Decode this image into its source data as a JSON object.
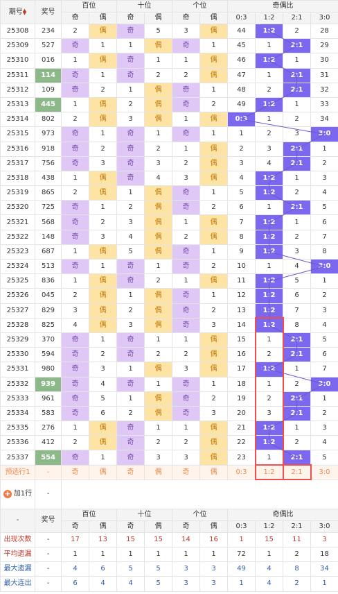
{
  "header": {
    "issue_label": "期号",
    "num_label": "奖号",
    "groups": [
      "百位",
      "十位",
      "个位",
      "奇偶比"
    ],
    "sub": [
      "奇",
      "偶",
      "奇",
      "偶",
      "奇",
      "偶",
      "0:3",
      "1:2",
      "2:1",
      "3:0"
    ]
  },
  "rows": [
    {
      "issue": "25308",
      "num": "234",
      "hl": false,
      "b": [
        [
          "2",
          0
        ],
        [
          "偶",
          1
        ]
      ],
      "s": [
        [
          "奇",
          1
        ],
        [
          "5",
          0
        ]
      ],
      "g": [
        [
          "3",
          0
        ],
        [
          "偶",
          1
        ]
      ],
      "r": [
        "44",
        "1:2",
        "2",
        "28"
      ],
      "ri": 1
    },
    {
      "issue": "25309",
      "num": "527",
      "hl": false,
      "b": [
        [
          "奇",
          1
        ],
        [
          "1",
          0
        ]
      ],
      "s": [
        [
          "1",
          0
        ],
        [
          "偶",
          1
        ]
      ],
      "g": [
        [
          "奇",
          1
        ],
        [
          "1",
          0
        ]
      ],
      "r": [
        "45",
        "1",
        "2:1",
        "29"
      ],
      "ri": 2
    },
    {
      "issue": "25310",
      "num": "016",
      "hl": false,
      "b": [
        [
          "1",
          0
        ],
        [
          "偶",
          1
        ]
      ],
      "s": [
        [
          "奇",
          1
        ],
        [
          "1",
          0
        ]
      ],
      "g": [
        [
          "1",
          0
        ],
        [
          "偶",
          1
        ]
      ],
      "r": [
        "46",
        "1:2",
        "1",
        "30"
      ],
      "ri": 1
    },
    {
      "issue": "25311",
      "num": "114",
      "hl": true,
      "b": [
        [
          "奇",
          1
        ],
        [
          "1",
          0
        ]
      ],
      "s": [
        [
          "奇",
          1
        ],
        [
          "2",
          0
        ]
      ],
      "g": [
        [
          "2",
          0
        ],
        [
          "偶",
          1
        ]
      ],
      "r": [
        "47",
        "1",
        "2:1",
        "31"
      ],
      "ri": 2
    },
    {
      "issue": "25312",
      "num": "109",
      "hl": false,
      "b": [
        [
          "奇",
          1
        ],
        [
          "2",
          0
        ]
      ],
      "s": [
        [
          "1",
          0
        ],
        [
          "偶",
          1
        ]
      ],
      "g": [
        [
          "奇",
          1
        ],
        [
          "1",
          0
        ]
      ],
      "r": [
        "48",
        "2",
        "2:1",
        "32"
      ],
      "ri": 2
    },
    {
      "issue": "25313",
      "num": "445",
      "hl": true,
      "b": [
        [
          "1",
          0
        ],
        [
          "偶",
          1
        ]
      ],
      "s": [
        [
          "2",
          0
        ],
        [
          "偶",
          1
        ]
      ],
      "g": [
        [
          "奇",
          1
        ],
        [
          "2",
          0
        ]
      ],
      "r": [
        "49",
        "1:2",
        "1",
        "33"
      ],
      "ri": 1
    },
    {
      "issue": "25314",
      "num": "802",
      "hl": false,
      "b": [
        [
          "2",
          0
        ],
        [
          "偶",
          1
        ]
      ],
      "s": [
        [
          "3",
          0
        ],
        [
          "偶",
          1
        ]
      ],
      "g": [
        [
          "1",
          0
        ],
        [
          "偶",
          1
        ]
      ],
      "r": [
        "0:3",
        "1",
        "2",
        "34"
      ],
      "ri": 0
    },
    {
      "issue": "25315",
      "num": "973",
      "hl": false,
      "b": [
        [
          "奇",
          1
        ],
        [
          "1",
          0
        ]
      ],
      "s": [
        [
          "奇",
          1
        ],
        [
          "1",
          0
        ]
      ],
      "g": [
        [
          "奇",
          1
        ],
        [
          "1",
          0
        ]
      ],
      "r": [
        "1",
        "2",
        "3",
        "3:0"
      ],
      "ri": 3
    },
    {
      "issue": "25316",
      "num": "918",
      "hl": false,
      "b": [
        [
          "奇",
          1
        ],
        [
          "2",
          0
        ]
      ],
      "s": [
        [
          "奇",
          1
        ],
        [
          "2",
          0
        ]
      ],
      "g": [
        [
          "1",
          0
        ],
        [
          "偶",
          1
        ]
      ],
      "r": [
        "2",
        "3",
        "2:1",
        "1"
      ],
      "ri": 2
    },
    {
      "issue": "25317",
      "num": "756",
      "hl": false,
      "b": [
        [
          "奇",
          1
        ],
        [
          "3",
          0
        ]
      ],
      "s": [
        [
          "奇",
          1
        ],
        [
          "3",
          0
        ]
      ],
      "g": [
        [
          "2",
          0
        ],
        [
          "偶",
          1
        ]
      ],
      "r": [
        "3",
        "4",
        "2:1",
        "2"
      ],
      "ri": 2
    },
    {
      "issue": "25318",
      "num": "438",
      "hl": false,
      "b": [
        [
          "1",
          0
        ],
        [
          "偶",
          1
        ]
      ],
      "s": [
        [
          "奇",
          1
        ],
        [
          "4",
          0
        ]
      ],
      "g": [
        [
          "3",
          0
        ],
        [
          "偶",
          1
        ]
      ],
      "r": [
        "4",
        "1:2",
        "1",
        "3"
      ],
      "ri": 1
    },
    {
      "issue": "25319",
      "num": "865",
      "hl": false,
      "b": [
        [
          "2",
          0
        ],
        [
          "偶",
          1
        ]
      ],
      "s": [
        [
          "1",
          0
        ],
        [
          "偶",
          1
        ]
      ],
      "g": [
        [
          "奇",
          1
        ],
        [
          "1",
          0
        ]
      ],
      "r": [
        "5",
        "1:2",
        "2",
        "4"
      ],
      "ri": 1
    },
    {
      "issue": "25320",
      "num": "725",
      "hl": false,
      "b": [
        [
          "奇",
          1
        ],
        [
          "1",
          0
        ]
      ],
      "s": [
        [
          "2",
          0
        ],
        [
          "偶",
          1
        ]
      ],
      "g": [
        [
          "奇",
          1
        ],
        [
          "2",
          0
        ]
      ],
      "r": [
        "6",
        "1",
        "2:1",
        "5"
      ],
      "ri": 2
    },
    {
      "issue": "25321",
      "num": "568",
      "hl": false,
      "b": [
        [
          "奇",
          1
        ],
        [
          "2",
          0
        ]
      ],
      "s": [
        [
          "3",
          0
        ],
        [
          "偶",
          1
        ]
      ],
      "g": [
        [
          "1",
          0
        ],
        [
          "偶",
          1
        ]
      ],
      "r": [
        "7",
        "1:2",
        "1",
        "6"
      ],
      "ri": 1
    },
    {
      "issue": "25322",
      "num": "148",
      "hl": false,
      "b": [
        [
          "奇",
          1
        ],
        [
          "3",
          0
        ]
      ],
      "s": [
        [
          "4",
          0
        ],
        [
          "偶",
          1
        ]
      ],
      "g": [
        [
          "2",
          0
        ],
        [
          "偶",
          1
        ]
      ],
      "r": [
        "8",
        "1:2",
        "2",
        "7"
      ],
      "ri": 1
    },
    {
      "issue": "25323",
      "num": "687",
      "hl": false,
      "b": [
        [
          "1",
          0
        ],
        [
          "偶",
          1
        ]
      ],
      "s": [
        [
          "5",
          0
        ],
        [
          "偶",
          1
        ]
      ],
      "g": [
        [
          "奇",
          1
        ],
        [
          "1",
          0
        ]
      ],
      "r": [
        "9",
        "1:2",
        "3",
        "8"
      ],
      "ri": 1
    },
    {
      "issue": "25324",
      "num": "513",
      "hl": false,
      "b": [
        [
          "奇",
          1
        ],
        [
          "1",
          0
        ]
      ],
      "s": [
        [
          "奇",
          1
        ],
        [
          "1",
          0
        ]
      ],
      "g": [
        [
          "奇",
          1
        ],
        [
          "2",
          0
        ]
      ],
      "r": [
        "10",
        "1",
        "4",
        "3:0"
      ],
      "ri": 3
    },
    {
      "issue": "25325",
      "num": "836",
      "hl": false,
      "b": [
        [
          "1",
          0
        ],
        [
          "偶",
          1
        ]
      ],
      "s": [
        [
          "奇",
          1
        ],
        [
          "2",
          0
        ]
      ],
      "g": [
        [
          "1",
          0
        ],
        [
          "偶",
          1
        ]
      ],
      "r": [
        "11",
        "1:2",
        "5",
        "1"
      ],
      "ri": 1
    },
    {
      "issue": "25326",
      "num": "045",
      "hl": false,
      "b": [
        [
          "2",
          0
        ],
        [
          "偶",
          1
        ]
      ],
      "s": [
        [
          "1",
          0
        ],
        [
          "偶",
          1
        ]
      ],
      "g": [
        [
          "奇",
          1
        ],
        [
          "1",
          0
        ]
      ],
      "r": [
        "12",
        "1:2",
        "6",
        "2"
      ],
      "ri": 1
    },
    {
      "issue": "25327",
      "num": "829",
      "hl": false,
      "b": [
        [
          "3",
          0
        ],
        [
          "偶",
          1
        ]
      ],
      "s": [
        [
          "2",
          0
        ],
        [
          "偶",
          1
        ]
      ],
      "g": [
        [
          "奇",
          1
        ],
        [
          "2",
          0
        ]
      ],
      "r": [
        "13",
        "1:2",
        "7",
        "3"
      ],
      "ri": 1
    },
    {
      "issue": "25328",
      "num": "825",
      "hl": false,
      "b": [
        [
          "4",
          0
        ],
        [
          "偶",
          1
        ]
      ],
      "s": [
        [
          "3",
          0
        ],
        [
          "偶",
          1
        ]
      ],
      "g": [
        [
          "奇",
          1
        ],
        [
          "3",
          0
        ]
      ],
      "r": [
        "14",
        "1:2",
        "8",
        "4"
      ],
      "ri": 1
    },
    {
      "issue": "25329",
      "num": "370",
      "hl": false,
      "b": [
        [
          "奇",
          1
        ],
        [
          "1",
          0
        ]
      ],
      "s": [
        [
          "奇",
          1
        ],
        [
          "1",
          0
        ]
      ],
      "g": [
        [
          "1",
          0
        ],
        [
          "偶",
          1
        ]
      ],
      "r": [
        "15",
        "1",
        "2:1",
        "5"
      ],
      "ri": 2
    },
    {
      "issue": "25330",
      "num": "594",
      "hl": false,
      "b": [
        [
          "奇",
          1
        ],
        [
          "2",
          0
        ]
      ],
      "s": [
        [
          "奇",
          1
        ],
        [
          "2",
          0
        ]
      ],
      "g": [
        [
          "2",
          0
        ],
        [
          "偶",
          1
        ]
      ],
      "r": [
        "16",
        "2",
        "2:1",
        "6"
      ],
      "ri": 2
    },
    {
      "issue": "25331",
      "num": "980",
      "hl": false,
      "b": [
        [
          "奇",
          1
        ],
        [
          "3",
          0
        ]
      ],
      "s": [
        [
          "1",
          0
        ],
        [
          "偶",
          1
        ]
      ],
      "g": [
        [
          "3",
          0
        ],
        [
          "偶",
          1
        ]
      ],
      "r": [
        "17",
        "1:2",
        "1",
        "7"
      ],
      "ri": 1
    },
    {
      "issue": "25332",
      "num": "939",
      "hl": true,
      "b": [
        [
          "奇",
          1
        ],
        [
          "4",
          0
        ]
      ],
      "s": [
        [
          "奇",
          1
        ],
        [
          "1",
          0
        ]
      ],
      "g": [
        [
          "奇",
          1
        ],
        [
          "1",
          0
        ]
      ],
      "r": [
        "18",
        "1",
        "2",
        "3:0"
      ],
      "ri": 3
    },
    {
      "issue": "25333",
      "num": "961",
      "hl": false,
      "b": [
        [
          "奇",
          1
        ],
        [
          "5",
          0
        ]
      ],
      "s": [
        [
          "1",
          0
        ],
        [
          "偶",
          1
        ]
      ],
      "g": [
        [
          "奇",
          1
        ],
        [
          "2",
          0
        ]
      ],
      "r": [
        "19",
        "2",
        "2:1",
        "1"
      ],
      "ri": 2
    },
    {
      "issue": "25334",
      "num": "583",
      "hl": false,
      "b": [
        [
          "奇",
          1
        ],
        [
          "6",
          0
        ]
      ],
      "s": [
        [
          "2",
          0
        ],
        [
          "偶",
          1
        ]
      ],
      "g": [
        [
          "奇",
          1
        ],
        [
          "3",
          0
        ]
      ],
      "r": [
        "20",
        "3",
        "2:1",
        "2"
      ],
      "ri": 2
    },
    {
      "issue": "25335",
      "num": "276",
      "hl": false,
      "b": [
        [
          "1",
          0
        ],
        [
          "偶",
          1
        ]
      ],
      "s": [
        [
          "奇",
          1
        ],
        [
          "1",
          0
        ]
      ],
      "g": [
        [
          "1",
          0
        ],
        [
          "偶",
          1
        ]
      ],
      "r": [
        "21",
        "1:2",
        "1",
        "3"
      ],
      "ri": 1
    },
    {
      "issue": "25336",
      "num": "412",
      "hl": false,
      "b": [
        [
          "2",
          0
        ],
        [
          "偶",
          1
        ]
      ],
      "s": [
        [
          "奇",
          1
        ],
        [
          "2",
          0
        ]
      ],
      "g": [
        [
          "2",
          0
        ],
        [
          "偶",
          1
        ]
      ],
      "r": [
        "22",
        "1:2",
        "2",
        "4"
      ],
      "ri": 1
    },
    {
      "issue": "25337",
      "num": "554",
      "hl": true,
      "b": [
        [
          "奇",
          1
        ],
        [
          "1",
          0
        ]
      ],
      "s": [
        [
          "奇",
          1
        ],
        [
          "3",
          0
        ]
      ],
      "g": [
        [
          "3",
          0
        ],
        [
          "偶",
          1
        ]
      ],
      "r": [
        "23",
        "1",
        "2:1",
        "5"
      ],
      "ri": 2
    }
  ],
  "predict": {
    "label": "预选行1",
    "num": "-",
    "cells": [
      "奇",
      "偶",
      "奇",
      "偶",
      "奇",
      "偶",
      "0:3",
      "1:2",
      "2:1",
      "3:0"
    ]
  },
  "add_row": {
    "label": "加1行",
    "value": "-"
  },
  "footer_header": {
    "dash": "-",
    "num_label": "奖号"
  },
  "stats": [
    {
      "label": "出现次数",
      "color": "red",
      "dash": "-",
      "values": [
        "17",
        "13",
        "15",
        "15",
        "14",
        "16",
        "1",
        "15",
        "11",
        "3"
      ]
    },
    {
      "label": "平均遗漏",
      "color": "dark",
      "dash": "-",
      "values": [
        "1",
        "1",
        "1",
        "1",
        "1",
        "1",
        "72",
        "1",
        "2",
        "18"
      ]
    },
    {
      "label": "最大遗漏",
      "color": "blue",
      "dash": "-",
      "values": [
        "4",
        "6",
        "5",
        "5",
        "3",
        "3",
        "49",
        "4",
        "8",
        "34"
      ]
    },
    {
      "label": "最大连出",
      "color": "blue",
      "dash": "-",
      "values": [
        "6",
        "4",
        "4",
        "5",
        "3",
        "3",
        "1",
        "4",
        "2",
        "1"
      ]
    }
  ],
  "colors": {
    "odd": "#dfc8f5",
    "even": "#fde3a4",
    "ratio": "#7b68ee",
    "highlight_num": "#8db88a",
    "redbox": "#f04e4e"
  }
}
